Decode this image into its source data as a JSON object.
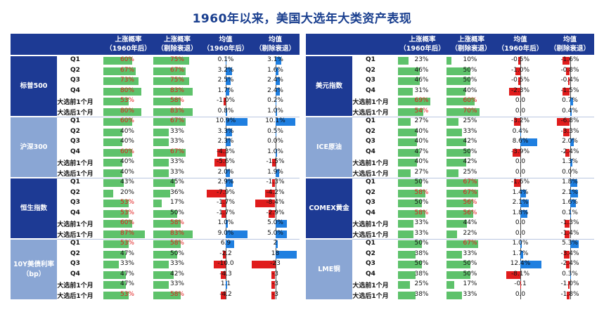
{
  "title": "1960年以来，美国大选年大类资产表现",
  "header": {
    "col1": [
      "上涨概率",
      "（1960年后）"
    ],
    "col2": [
      "上涨概率",
      "（剔除衰退）"
    ],
    "col3": [
      "均值",
      "（1960年后）"
    ],
    "col4": [
      "均值",
      "（剔除衰退）"
    ]
  },
  "colors": {
    "header_bg": "#1d3a94",
    "group_alt_bg": "#8aa6d4",
    "prob_bar": "#5ec26b",
    "pos_bar": "#1f7fe0",
    "neg_bar": "#e01c1c",
    "red_text": "#e01c1c"
  },
  "chart_data": {
    "type": "table",
    "row_labels": [
      "Q1",
      "Q2",
      "Q3",
      "Q4",
      "大选前1个月",
      "大选后1个月"
    ],
    "panels": [
      {
        "groups": [
          {
            "name": "标普500",
            "mean_max": 12,
            "rows": [
              {
                "p1": "60%",
                "p1v": 60,
                "p1r": true,
                "p2": "75%",
                "p2v": 75,
                "p2r": true,
                "m1": "0.1%",
                "m1v": 0.1,
                "m2": "3.1%",
                "m2v": 3.1
              },
              {
                "p1": "67%",
                "p1v": 67,
                "p1r": true,
                "p2": "67%",
                "p2v": 67,
                "p2r": true,
                "m1": "3.2%",
                "m1v": 3.2,
                "m2": "1.6%",
                "m2v": 1.6
              },
              {
                "p1": "73%",
                "p1v": 73,
                "p1r": true,
                "p2": "75%",
                "p2v": 75,
                "p2r": true,
                "m1": "2.5%",
                "m1v": 2.5,
                "m2": "2.4%",
                "m2v": 2.4
              },
              {
                "p1": "80%",
                "p1v": 80,
                "p1r": true,
                "p2": "83%",
                "p2v": 83,
                "p2r": true,
                "m1": "1.7%",
                "m1v": 1.7,
                "m2": "2.4%",
                "m2v": 2.4
              },
              {
                "p1": "53%",
                "p1v": 53,
                "p1r": true,
                "p2": "58%",
                "p2v": 58,
                "p2r": true,
                "m1": "-1.0%",
                "m1v": -1.0,
                "m2": "0.2%",
                "m2v": 0.2
              },
              {
                "p1": "80%",
                "p1v": 80,
                "p1r": true,
                "p2": "83%",
                "p2v": 83,
                "p2r": true,
                "m1": "0.8%",
                "m1v": 0.8,
                "m2": "1.0%",
                "m2v": 1.0
              }
            ]
          },
          {
            "name": "沪深300",
            "mean_max": 12,
            "rows": [
              {
                "p1": "60%",
                "p1v": 60,
                "p1r": true,
                "p2": "67%",
                "p2v": 67,
                "p2r": true,
                "m1": "10.9%",
                "m1v": 10.9,
                "m2": "10.1%",
                "m2v": 10.1
              },
              {
                "p1": "40%",
                "p1v": 40,
                "p1r": false,
                "p2": "33%",
                "p2v": 33,
                "p2r": false,
                "m1": "3.3%",
                "m1v": 3.3,
                "m2": "0.5%",
                "m2v": 0.5
              },
              {
                "p1": "40%",
                "p1v": 40,
                "p1r": false,
                "p2": "33%",
                "p2v": 33,
                "p2r": false,
                "m1": "2.3%",
                "m1v": 2.3,
                "m2": "0.0%",
                "m2v": 0.0
              },
              {
                "p1": "60%",
                "p1v": 60,
                "p1r": true,
                "p2": "67%",
                "p2v": 67,
                "p2r": true,
                "m1": "-4.3%",
                "m1v": -4.3,
                "m2": "1.0%",
                "m2v": 1.0
              },
              {
                "p1": "40%",
                "p1v": 40,
                "p1r": false,
                "p2": "33%",
                "p2v": 33,
                "p2r": false,
                "m1": "-5.6%",
                "m1v": -5.6,
                "m2": "-1.5%",
                "m2v": -1.5
              },
              {
                "p1": "40%",
                "p1v": 40,
                "p1r": false,
                "p2": "33%",
                "p2v": 33,
                "p2r": false,
                "m1": "2.0%",
                "m1v": 2.0,
                "m2": "1.9%",
                "m2v": 1.9
              }
            ]
          },
          {
            "name": "恒生指数",
            "mean_max": 10,
            "rows": [
              {
                "p1": "43%",
                "p1v": 43,
                "p1r": false,
                "p2": "45%",
                "p2v": 45,
                "p2r": false,
                "m1": "2.9%",
                "m1v": 2.9,
                "m2": "-1.3%",
                "m2v": -1.3
              },
              {
                "p1": "20%",
                "p1v": 20,
                "p1r": false,
                "p2": "36%",
                "p2v": 36,
                "p2r": false,
                "m1": "-7.9%",
                "m1v": -7.9,
                "m2": "-4.2%",
                "m2v": -4.2
              },
              {
                "p1": "53%",
                "p1v": 53,
                "p1r": true,
                "p2": "17%",
                "p2v": 17,
                "p2r": false,
                "m1": "-1.7%",
                "m1v": -1.7,
                "m2": "-8.4%",
                "m2v": -8.4
              },
              {
                "p1": "53%",
                "p1v": 53,
                "p1r": true,
                "p2": "50%",
                "p2v": 50,
                "p2r": false,
                "m1": "-1.7%",
                "m1v": -1.7,
                "m2": "-2.9%",
                "m2v": -2.9
              },
              {
                "p1": "60%",
                "p1v": 60,
                "p1r": true,
                "p2": "58%",
                "p2v": 58,
                "p2r": true,
                "m1": "1.0%",
                "m1v": 1.0,
                "m2": "5.0%",
                "m2v": 5.0
              },
              {
                "p1": "87%",
                "p1v": 87,
                "p1r": true,
                "p2": "83%",
                "p2v": 83,
                "p2r": true,
                "m1": "9.0%",
                "m1v": 9.0,
                "m2": "5.0%",
                "m2v": 5.0
              }
            ]
          },
          {
            "name": "10Y美债利率（bp）",
            "mean_max": 20,
            "rows": [
              {
                "p1": "53%",
                "p1v": 53,
                "p1r": true,
                "p2": "58%",
                "p2v": 58,
                "p2r": true,
                "m1": "6.9",
                "m1v": 6.9,
                "m2": "2",
                "m2v": 2
              },
              {
                "p1": "47%",
                "p1v": 47,
                "p1r": false,
                "p2": "50%",
                "p2v": 50,
                "p2r": false,
                "m1": "-2.2",
                "m1v": -2.2,
                "m2": "18",
                "m2v": 18
              },
              {
                "p1": "33%",
                "p1v": 33,
                "p1r": false,
                "p2": "33%",
                "p2v": 33,
                "p2r": false,
                "m1": "-10.0",
                "m1v": -10.0,
                "m2": "-23",
                "m2v": -23
              },
              {
                "p1": "47%",
                "p1v": 47,
                "p1r": false,
                "p2": "42%",
                "p2v": 42,
                "p2r": false,
                "m1": "-4.3",
                "m1v": -4.3,
                "m2": "-3",
                "m2v": -3
              },
              {
                "p1": "47%",
                "p1v": 47,
                "p1r": false,
                "p2": "33%",
                "p2v": 33,
                "p2r": false,
                "m1": "1.1",
                "m1v": 1.1,
                "m2": "-3",
                "m2v": -3
              },
              {
                "p1": "53%",
                "p1v": 53,
                "p1r": true,
                "p2": "58%",
                "p2v": 58,
                "p2r": true,
                "m1": "-4.2",
                "m1v": -4.2,
                "m2": "-3",
                "m2v": -3
              }
            ]
          }
        ]
      },
      {
        "groups": [
          {
            "name": "美元指数",
            "mean_max": 5,
            "rows": [
              {
                "p1": "23%",
                "p1v": 23,
                "p1r": false,
                "p2": "10%",
                "p2v": 10,
                "p2r": false,
                "m1": "-0.5%",
                "m1v": -0.5,
                "m2": "-1.6%",
                "m2v": -1.6
              },
              {
                "p1": "46%",
                "p1v": 46,
                "p1r": false,
                "p2": "50%",
                "p2v": 50,
                "p2r": false,
                "m1": "-1.0%",
                "m1v": -1.0,
                "m2": "-0.8%",
                "m2v": -0.8
              },
              {
                "p1": "46%",
                "p1v": 46,
                "p1r": false,
                "p2": "50%",
                "p2v": 50,
                "p2r": false,
                "m1": "-0.5%",
                "m1v": -0.5,
                "m2": "-0.4%",
                "m2v": -0.4
              },
              {
                "p1": "31%",
                "p1v": 31,
                "p1r": false,
                "p2": "40%",
                "p2v": 40,
                "p2r": false,
                "m1": "-2.3%",
                "m1v": -2.3,
                "m2": "-1.5%",
                "m2v": -1.5
              },
              {
                "p1": "69%",
                "p1v": 69,
                "p1r": true,
                "p2": "60%",
                "p2v": 60,
                "p2r": true,
                "m1": "0.0",
                "m1v": 0.0,
                "m2": "0.7%",
                "m2v": 0.7
              },
              {
                "p1": "54%",
                "p1v": 54,
                "p1r": true,
                "p2": "70%",
                "p2v": 70,
                "p2r": true,
                "m1": "0.0",
                "m1v": 0.0,
                "m2": "0.4%",
                "m2v": 0.4
              }
            ]
          },
          {
            "name": "ICE原油",
            "mean_max": 12,
            "rows": [
              {
                "p1": "27%",
                "p1v": 27,
                "p1r": false,
                "p2": "25%",
                "p2v": 25,
                "p2r": false,
                "m1": "-3.2%",
                "m1v": -3.2,
                "m2": "-6.8%",
                "m2v": -6.8
              },
              {
                "p1": "40%",
                "p1v": 40,
                "p1r": false,
                "p2": "33%",
                "p2v": 33,
                "p2r": false,
                "m1": "0.4%",
                "m1v": 0.4,
                "m2": "-3.3%",
                "m2v": -3.3
              },
              {
                "p1": "40%",
                "p1v": 40,
                "p1r": false,
                "p2": "42%",
                "p2v": 42,
                "p2r": false,
                "m1": "8.6%",
                "m1v": 8.6,
                "m2": "2.0%",
                "m2v": 2.0
              },
              {
                "p1": "47%",
                "p1v": 47,
                "p1r": false,
                "p2": "50%",
                "p2v": 50,
                "p2r": false,
                "m1": "-3.9%",
                "m1v": -3.9,
                "m2": "-2.4%",
                "m2v": -2.4
              },
              {
                "p1": "40%",
                "p1v": 40,
                "p1r": false,
                "p2": "42%",
                "p2v": 42,
                "p2r": false,
                "m1": "0.0",
                "m1v": 0.0,
                "m2": "1.3%",
                "m2v": 1.3
              },
              {
                "p1": "27%",
                "p1v": 27,
                "p1r": false,
                "p2": "25%",
                "p2v": 25,
                "p2r": false,
                "m1": "0.0",
                "m1v": 0.0,
                "m2": "0.0%",
                "m2v": 0.0
              }
            ]
          },
          {
            "name": "COMEX黄金",
            "mean_max": 6,
            "rows": [
              {
                "p1": "50%",
                "p1v": 50,
                "p1r": false,
                "p2": "67%",
                "p2v": 67,
                "p2r": true,
                "m1": "-1.6%",
                "m1v": -1.6,
                "m2": "1.8%",
                "m2v": 1.8
              },
              {
                "p1": "58%",
                "p1v": 58,
                "p1r": true,
                "p2": "67%",
                "p2v": 67,
                "p2r": true,
                "m1": "1.4%",
                "m1v": 1.4,
                "m2": "2.1%",
                "m2v": 2.1
              },
              {
                "p1": "50%",
                "p1v": 50,
                "p1r": false,
                "p2": "56%",
                "p2v": 56,
                "p2r": true,
                "m1": "2.1%",
                "m1v": 2.1,
                "m2": "1.6%",
                "m2v": 1.6
              },
              {
                "p1": "58%",
                "p1v": 58,
                "p1r": true,
                "p2": "56%",
                "p2v": 56,
                "p2r": true,
                "m1": "1.8%",
                "m1v": 1.8,
                "m2": "0.1%",
                "m2v": 0.1
              },
              {
                "p1": "33%",
                "p1v": 33,
                "p1r": false,
                "p2": "44%",
                "p2v": 44,
                "p2r": false,
                "m1": "0.0",
                "m1v": 0.0,
                "m2": "-1.3%",
                "m2v": -1.3
              },
              {
                "p1": "33%",
                "p1v": 33,
                "p1r": false,
                "p2": "22%",
                "p2v": 22,
                "p2r": false,
                "m1": "0.0",
                "m1v": 0.0,
                "m2": "-1.4%",
                "m2v": -1.4
              }
            ]
          },
          {
            "name": "LME铜",
            "mean_max": 14,
            "rows": [
              {
                "p1": "50%",
                "p1v": 50,
                "p1r": false,
                "p2": "67%",
                "p2v": 67,
                "p2r": true,
                "m1": "1.0%",
                "m1v": 1.0,
                "m2": "5.3%",
                "m2v": 5.3
              },
              {
                "p1": "38%",
                "p1v": 38,
                "p1r": false,
                "p2": "33%",
                "p2v": 33,
                "p2r": false,
                "m1": "1.7%",
                "m1v": 1.7,
                "m2": "-3.4%",
                "m2v": -3.4
              },
              {
                "p1": "50%",
                "p1v": 50,
                "p1r": false,
                "p2": "50%",
                "p2v": 50,
                "p2r": false,
                "m1": "12.4%",
                "m1v": 12.4,
                "m2": "-2.4%",
                "m2v": -2.4
              },
              {
                "p1": "38%",
                "p1v": 38,
                "p1r": false,
                "p2": "50%",
                "p2v": 50,
                "p2r": false,
                "m1": "-8.1%",
                "m1v": -8.1,
                "m2": "0.3%",
                "m2v": 0.3
              },
              {
                "p1": "25%",
                "p1v": 25,
                "p1r": false,
                "p2": "17%",
                "p2v": 17,
                "p2r": false,
                "m1": "-0.1",
                "m1v": -0.1,
                "m2": "-1.0%",
                "m2v": -1.0
              },
              {
                "p1": "38%",
                "p1v": 38,
                "p1r": false,
                "p2": "33%",
                "p2v": 33,
                "p2r": false,
                "m1": "0.0",
                "m1v": 0.0,
                "m2": "-1.8%",
                "m2v": -1.8
              }
            ]
          }
        ]
      }
    ]
  }
}
